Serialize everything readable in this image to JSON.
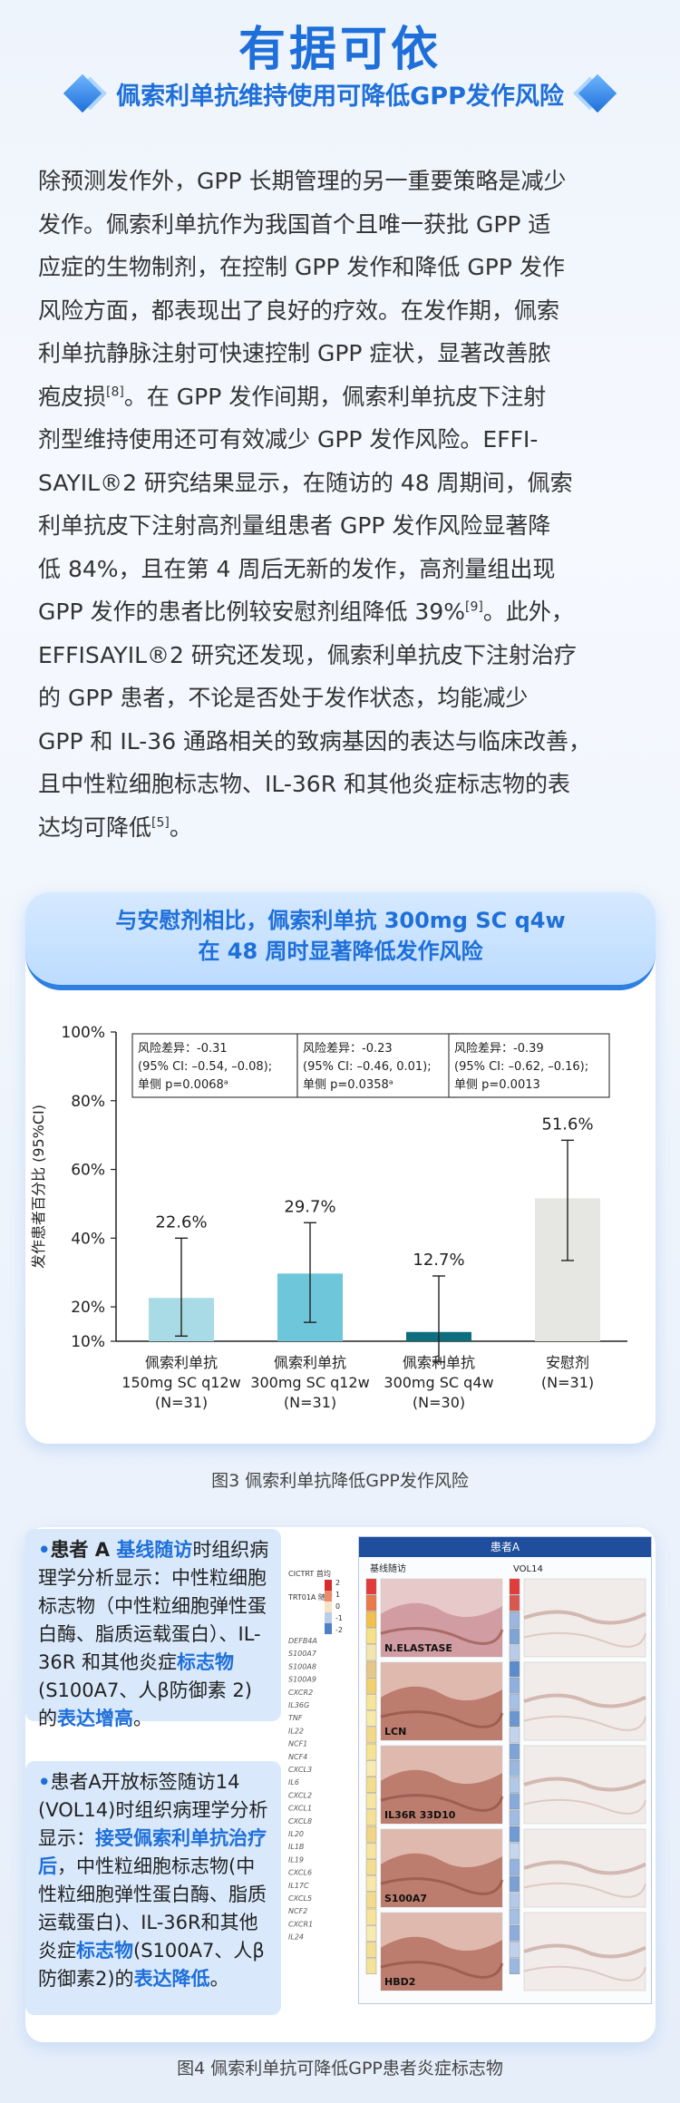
{
  "header": {
    "title": "有据可依",
    "subtitle": "佩索利单抗维持使用可降低GPP发作风险"
  },
  "body_lines": [
    "除预测发作外，GPP 长期管理的另一重要策略是减少",
    "发作。佩索利单抗作为我国首个且唯一获批 GPP 适",
    "应症的生物制剂，在控制 GPP 发作和降低 GPP 发作",
    "风险方面，都表现出了良好的疗效。在发作期，佩索",
    "利单抗静脉注射可快速控制 GPP 症状，显著改善脓",
    "疱皮损",
    "。在 GPP 发作间期，佩索利单抗皮下注射",
    "剂型维持使用还可有效减少 GPP 发作风险。EFFI-",
    "SAYIL®2 研究结果显示，在随访的 48 周期间，佩索",
    "利单抗皮下注射高剂量组患者 GPP 发作风险显著降",
    "低 84%，且在第 4 周后无新的发作，高剂量组出现",
    "GPP 发作的患者比例较安慰剂组降低 39%",
    "。此外，",
    "EFFISAYIL®2 研究还发现，佩索利单抗皮下注射治疗",
    "的 GPP 患者，不论是否处于发作状态，均能减少",
    "GPP 和 IL-36 通路相关的致病基因的表达与临床改善，",
    "且中性粒细胞标志物、IL-36R 和其他炎症标志物的表",
    "达均可降低",
    "。"
  ],
  "refs": {
    "r8": "[8]",
    "r9": "[9]",
    "r5": "[5]"
  },
  "chart_card": {
    "header_line1": "与安慰剂相比，佩索利单抗 300mg SC q4w",
    "header_line2": "在 48 周时显著降低发作风险"
  },
  "chart_data": {
    "type": "bar",
    "ylabel": "发作患者百分比 (95%CI)",
    "ylim": [
      10,
      100
    ],
    "yticks": [
      "10%",
      "20%",
      "40%",
      "60%",
      "80%",
      "100%"
    ],
    "categories": [
      [
        "佩索利单抗",
        "150mg SC q12w",
        "(N=31)"
      ],
      [
        "佩索利单抗",
        "300mg SC q12w",
        "(N=31)"
      ],
      [
        "佩索利单抗",
        "300mg SC q4w",
        "(N=30)"
      ],
      [
        "安慰剂",
        "(N=31)"
      ]
    ],
    "values": [
      22.6,
      29.7,
      12.7,
      51.6
    ],
    "value_labels": [
      "22.6%",
      "29.7%",
      "12.7%",
      "51.6%"
    ],
    "ci_low": [
      11.5,
      15.5,
      4.0,
      33.5
    ],
    "ci_high": [
      40.0,
      44.5,
      29.0,
      68.5
    ],
    "colors": [
      "#a8dbe6",
      "#6ec6da",
      "#0e6e7e",
      "#e6e6e2"
    ],
    "annotations": [
      [
        "风险差异：-0.31",
        "(95% CI: –0.54, –0.08);",
        "单侧 p=0.0068ᵃ"
      ],
      [
        "风险差异：-0.23",
        "(95% CI: –0.46, 0.01);",
        "单侧 p=0.0358ᵃ"
      ],
      [
        "风险差异：-0.39",
        "(95% CI: –0.62, –0.16);",
        "单侧 p=0.0013"
      ]
    ]
  },
  "fig3_caption": "图3 佩索利单抗降低GPP发作风险",
  "bullet1": {
    "dot": "•",
    "a": "患者 A ",
    "b": "基线随访",
    "c": "时组织病理学分析显示：中性粒细胞标志物（中性粒细胞弹性蛋白酶、脂质运载蛋白）、IL-36R 和其他炎症",
    "d": "标志物",
    "e": "(S100A7、人β防御素 2) 的",
    "f": "表达增高",
    "g": "。"
  },
  "bullet2": {
    "dot": "•",
    "a": "患者A开放标签随访14 (VOL14)时组织病理学分析显示：",
    "b": "接受佩索利单抗治疗后",
    "c": "，中性粒细胞标志物(中性粒细胞弹性蛋白酶、脂质运载蛋白)、IL-36R和其他炎症",
    "d": "标志物",
    "e": "(S100A7、人β防御素2)的",
    "f": "表达降低",
    "g": "。"
  },
  "panel": {
    "title": "患者A",
    "col1": "基线随访",
    "col2": "VOL14",
    "legend_title": "CICTRT 首均",
    "legend_sub": "TRT01A 随访",
    "scale_labels": [
      "2",
      "1",
      "0",
      "-1",
      "-2"
    ],
    "genes": [
      "DEFB4A",
      "S100A7",
      "S100A8",
      "S100A9",
      "CXCR2",
      "IL36G",
      "TNF",
      "IL22",
      "NCF1",
      "NCF4",
      "CXCL3",
      "IL6",
      "CXCL2",
      "CXCL1",
      "CXCL8",
      "IL20",
      "IL1B",
      "IL19",
      "CXCL6",
      "IL17C",
      "CXCL5",
      "NCF2",
      "CXCR1",
      "IL24"
    ],
    "stain_labels": [
      "N.ELASTASE",
      "LCN",
      "IL36R 33D10",
      "S100A7",
      "HBD2"
    ]
  },
  "fig4_caption": "图4 佩索利单抗可降低GPP患者炎症标志物"
}
